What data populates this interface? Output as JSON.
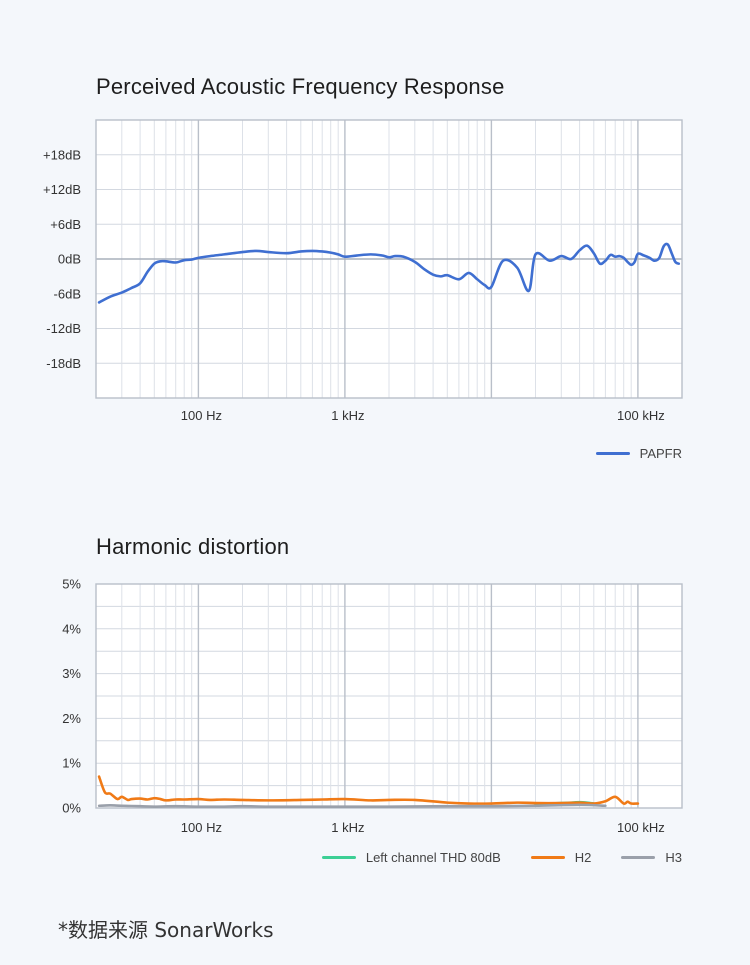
{
  "source_note": "*数据来源 SonarWorks",
  "chart_data": [
    {
      "type": "line",
      "title": "Perceived Acoustic Frequency Response",
      "x_scale": "log",
      "xlim": [
        20,
        200000
      ],
      "x_ticks": [
        {
          "value": 100,
          "label": "100 Hz"
        },
        {
          "value": 1000,
          "label": "1 kHz"
        },
        {
          "value": 100000,
          "label": "100 kHz"
        }
      ],
      "ylim": [
        -24,
        24
      ],
      "y_ticks": [
        {
          "value": 18,
          "label": "+18dB"
        },
        {
          "value": 12,
          "label": "+12dB"
        },
        {
          "value": 6,
          "label": "+6dB"
        },
        {
          "value": 0,
          "label": "0dB"
        },
        {
          "value": -6,
          "label": "-6dB"
        },
        {
          "value": -12,
          "label": "-12dB"
        },
        {
          "value": -18,
          "label": "-18dB"
        }
      ],
      "grid": true,
      "legend_position": "bottom-right",
      "series": [
        {
          "name": "PAPFR",
          "color": "#3f6fd1",
          "x": [
            21,
            25,
            30,
            35,
            40,
            45,
            50,
            55,
            60,
            70,
            80,
            90,
            100,
            120,
            150,
            200,
            250,
            300,
            400,
            500,
            600,
            700,
            800,
            900,
            1000,
            1200,
            1500,
            1800,
            2000,
            2200,
            2500,
            3000,
            3500,
            4000,
            4500,
            5000,
            6000,
            7000,
            8000,
            9000,
            10000,
            12000,
            15000,
            18000,
            20000,
            25000,
            30000,
            35000,
            40000,
            45000,
            50000,
            55000,
            60000,
            65000,
            70000,
            75000,
            80000,
            85000,
            90000,
            95000,
            100000,
            110000,
            120000,
            130000,
            140000,
            150000,
            160000,
            170000,
            180000,
            190000
          ],
          "values": [
            -7.5,
            -6.5,
            -5.8,
            -5.0,
            -4.2,
            -2.2,
            -0.8,
            -0.4,
            -0.4,
            -0.6,
            -0.2,
            -0.1,
            0.2,
            0.5,
            0.8,
            1.2,
            1.4,
            1.2,
            1.0,
            1.3,
            1.4,
            1.3,
            1.1,
            0.8,
            0.4,
            0.6,
            0.8,
            0.6,
            0.3,
            0.5,
            0.4,
            -0.5,
            -1.8,
            -2.7,
            -3.0,
            -2.8,
            -3.5,
            -2.4,
            -3.5,
            -4.5,
            -4.8,
            -0.3,
            -1.5,
            -5.5,
            0.8,
            -0.3,
            0.5,
            0.0,
            1.5,
            2.3,
            1.0,
            -0.8,
            -0.3,
            0.7,
            0.4,
            0.5,
            0.2,
            -0.5,
            -1.0,
            -0.5,
            0.9,
            0.6,
            0.2,
            -0.3,
            0.2,
            2.2,
            2.5,
            1.0,
            -0.5,
            -0.8
          ]
        }
      ]
    },
    {
      "type": "line",
      "title": "Harmonic distortion",
      "x_scale": "log",
      "xlim": [
        20,
        200000
      ],
      "x_ticks": [
        {
          "value": 100,
          "label": "100 Hz"
        },
        {
          "value": 1000,
          "label": "1 kHz"
        },
        {
          "value": 100000,
          "label": "100 kHz"
        }
      ],
      "ylim": [
        0,
        5
      ],
      "y_ticks": [
        {
          "value": 5,
          "label": "5%"
        },
        {
          "value": 4,
          "label": "4%"
        },
        {
          "value": 3,
          "label": "3%"
        },
        {
          "value": 2,
          "label": "2%"
        },
        {
          "value": 1,
          "label": "1%"
        },
        {
          "value": 0,
          "label": "0%"
        }
      ],
      "grid": true,
      "legend_position": "bottom-right",
      "series": [
        {
          "name": "Left channel THD 80dB",
          "color": "#3ccf95",
          "x": [
            20000,
            25000,
            30000,
            35000,
            40000,
            45000,
            50000
          ],
          "values": [
            0.09,
            0.1,
            0.11,
            0.12,
            0.13,
            0.12,
            0.1
          ]
        },
        {
          "name": "H2",
          "color": "#f07a16",
          "x": [
            21,
            23,
            25,
            28,
            30,
            33,
            35,
            40,
            45,
            50,
            55,
            60,
            70,
            80,
            100,
            120,
            150,
            200,
            300,
            500,
            700,
            1000,
            1500,
            2000,
            3000,
            5000,
            7000,
            10000,
            15000,
            20000,
            30000,
            40000,
            50000,
            60000,
            70000,
            80000,
            85000,
            90000,
            100000
          ],
          "values": [
            0.7,
            0.35,
            0.32,
            0.2,
            0.25,
            0.18,
            0.2,
            0.21,
            0.19,
            0.22,
            0.2,
            0.17,
            0.19,
            0.19,
            0.2,
            0.18,
            0.19,
            0.18,
            0.17,
            0.18,
            0.19,
            0.2,
            0.17,
            0.18,
            0.18,
            0.12,
            0.1,
            0.1,
            0.12,
            0.11,
            0.11,
            0.12,
            0.1,
            0.15,
            0.25,
            0.1,
            0.14,
            0.1,
            0.1
          ]
        },
        {
          "name": "H3",
          "color": "#9aa0aa",
          "x": [
            21,
            25,
            30,
            40,
            50,
            70,
            100,
            150,
            200,
            300,
            500,
            1000,
            2000,
            5000,
            10000,
            20000,
            40000,
            60000
          ],
          "values": [
            0.05,
            0.06,
            0.05,
            0.04,
            0.03,
            0.04,
            0.03,
            0.03,
            0.04,
            0.03,
            0.03,
            0.03,
            0.03,
            0.04,
            0.04,
            0.05,
            0.07,
            0.05
          ]
        }
      ]
    }
  ]
}
